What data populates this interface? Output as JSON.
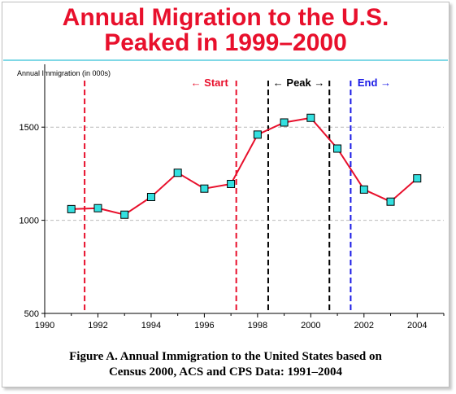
{
  "title": {
    "line1": "Annual Migration to the U.S.",
    "line2": "Peaked in 1999–2000"
  },
  "colors": {
    "title": "#e8102c",
    "series_line": "#e8102c",
    "marker_fill": "#33e0e0",
    "start_line": "#e8102c",
    "peak_line": "#000000",
    "end_line": "#1a1ae6",
    "grid": "#bbbbbb"
  },
  "chart_data": {
    "type": "line",
    "ylabel": "Annual Immigration (in 000s)",
    "xlabel": "",
    "xlim": [
      1990,
      2005
    ],
    "ylim": [
      500,
      1750
    ],
    "x_ticks": [
      1990,
      1992,
      1994,
      1996,
      1998,
      2000,
      2002,
      2004
    ],
    "y_ticks": [
      500,
      1000,
      1500
    ],
    "grid": "dashed horizontal at 1000 and 1500",
    "series": [
      {
        "x": [
          1991,
          1992,
          1993,
          1994,
          1995,
          1996,
          1997,
          1998,
          1999,
          2000,
          2001,
          2002,
          2003,
          2004
        ],
        "values": [
          1060,
          1065,
          1030,
          1125,
          1255,
          1170,
          1195,
          1460,
          1525,
          1550,
          1385,
          1165,
          1100,
          1225
        ]
      }
    ],
    "period_lines": [
      {
        "x": 1991.5,
        "kind": "start"
      },
      {
        "x": 1997.2,
        "kind": "start"
      },
      {
        "x": 1998.4,
        "kind": "peak"
      },
      {
        "x": 2000.7,
        "kind": "peak"
      },
      {
        "x": 2001.5,
        "kind": "end"
      }
    ],
    "annotations": [
      {
        "id": "start",
        "text": "Start",
        "arrow": "←",
        "kind": "start"
      },
      {
        "id": "peak",
        "text": "Peak",
        "arrow_left": "←",
        "arrow_right": "→",
        "kind": "peak"
      },
      {
        "id": "end",
        "text": "End",
        "arrow": "→",
        "kind": "end"
      }
    ]
  },
  "caption": {
    "line1": "Figure A.  Annual Immigration to the United States based on",
    "line2": "Census 2000, ACS and CPS Data:  1991–2004"
  }
}
